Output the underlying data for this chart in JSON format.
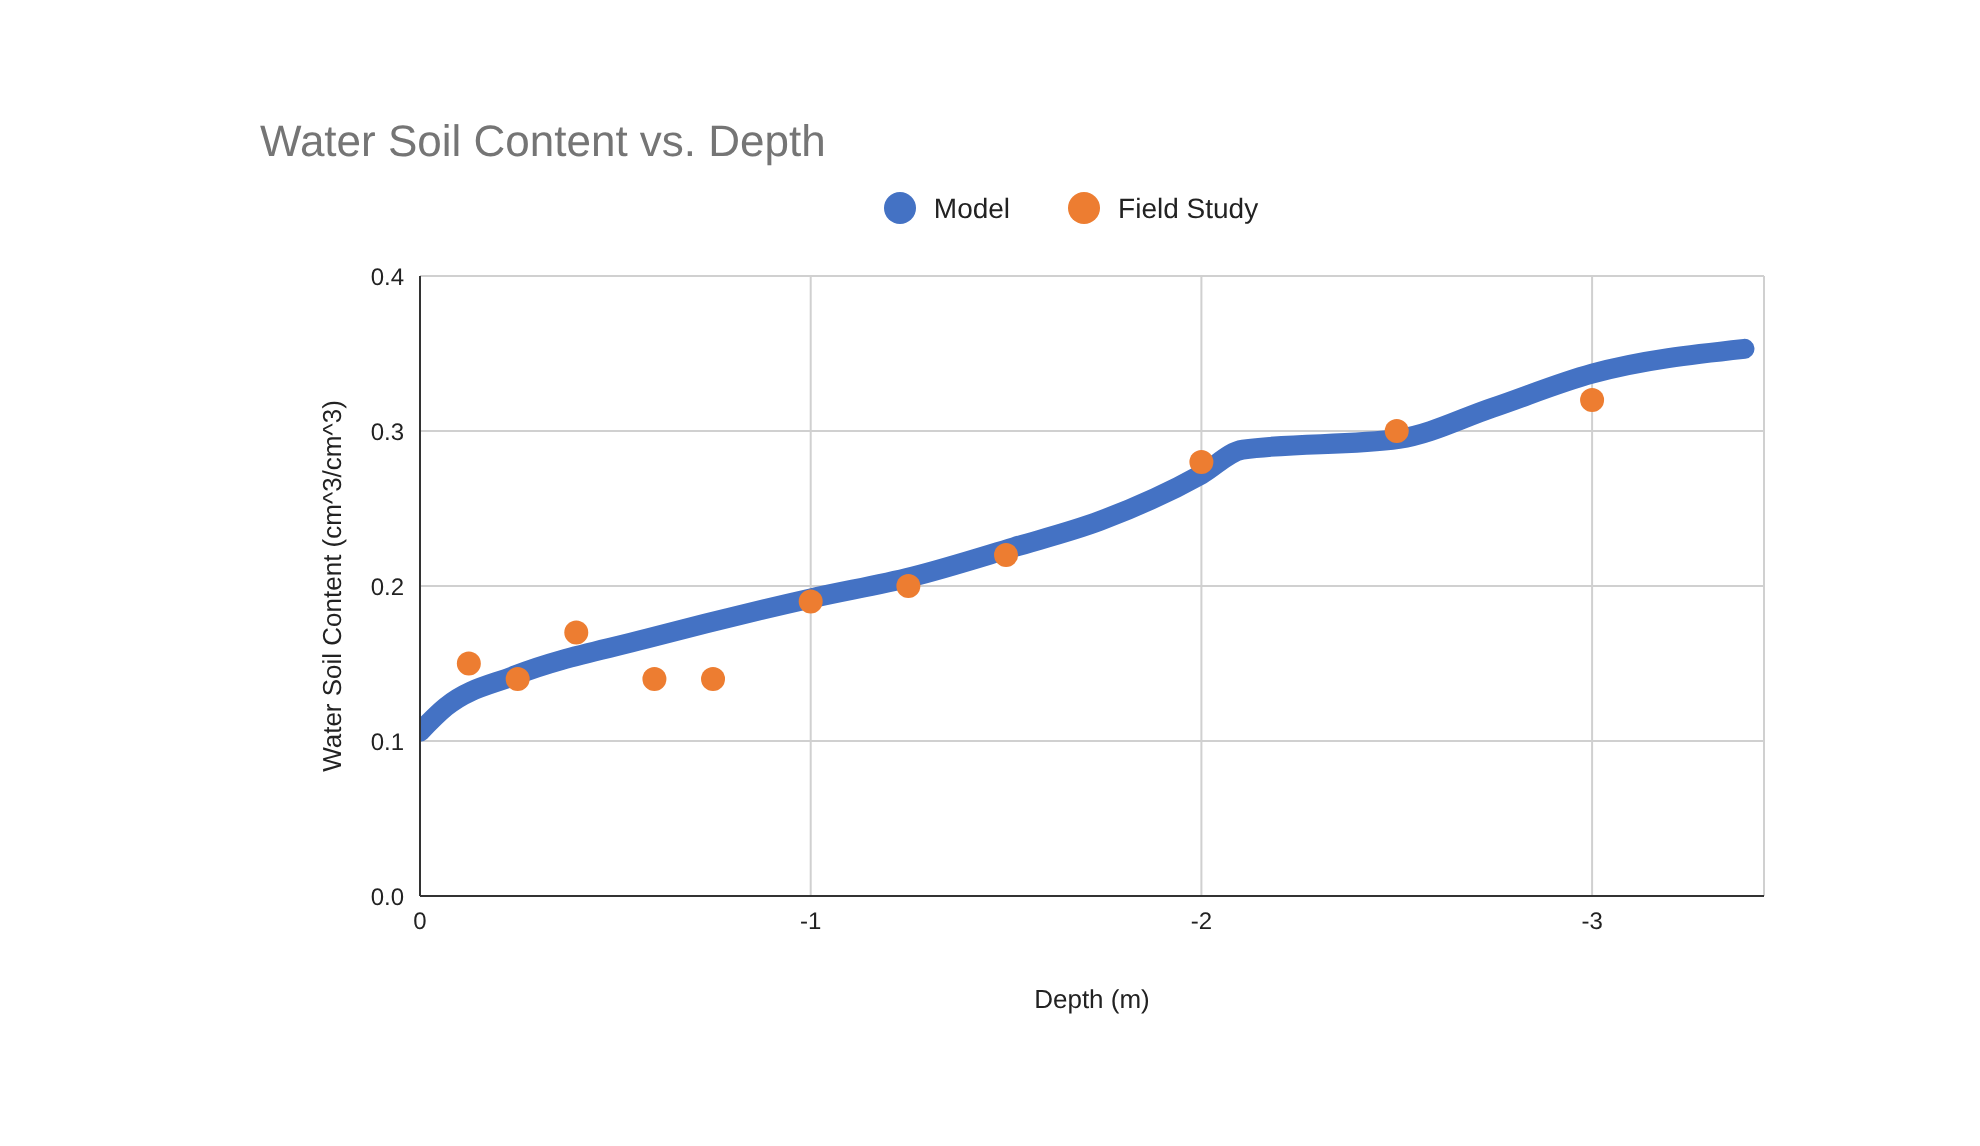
{
  "chart_data": {
    "type": "line",
    "title": "Water Soil Content vs. Depth",
    "xlabel": "Depth (m)",
    "ylabel": "Water Soil Content (cm^3/cm^3)",
    "xlim": [
      0,
      -3.44
    ],
    "xticks": [
      0,
      -1,
      -2,
      -3
    ],
    "ylim": [
      0,
      0.4
    ],
    "yticks": [
      {
        "value": 0,
        "label": "0.0"
      },
      {
        "value": 0.1,
        "label": "0.1"
      },
      {
        "value": 0.2,
        "label": "0.2"
      },
      {
        "value": 0.3,
        "label": "0.3"
      },
      {
        "value": 0.4,
        "label": "0.4"
      }
    ],
    "grid": true,
    "legend": "top",
    "series": [
      {
        "name": "Model",
        "marker": "none",
        "color": "#4472c4",
        "x": [
          0,
          -0.066,
          -0.24,
          -0.58,
          -1.0,
          -1.26,
          -1.52,
          -1.74,
          -2.0,
          -2.106,
          -2.506,
          -2.745,
          -3.0,
          -3.39
        ],
        "values": [
          0.106,
          0.122,
          0.142,
          0.166,
          0.192,
          0.206,
          0.225,
          0.242,
          0.272,
          0.288,
          0.295,
          0.315,
          0.337,
          0.353
        ]
      },
      {
        "name": "Field Study",
        "type": "scatter",
        "marker": "circle",
        "color": "#ed7d31",
        "x": [
          -0.125,
          -0.25,
          -0.4,
          -0.6,
          -0.75,
          -1,
          -1.25,
          -1.5,
          -2,
          -2.5,
          -3
        ],
        "values": [
          0.15,
          0.14,
          0.17,
          0.14,
          0.14,
          0.19,
          0.2,
          0.22,
          0.28,
          0.3,
          0.32
        ]
      }
    ]
  }
}
